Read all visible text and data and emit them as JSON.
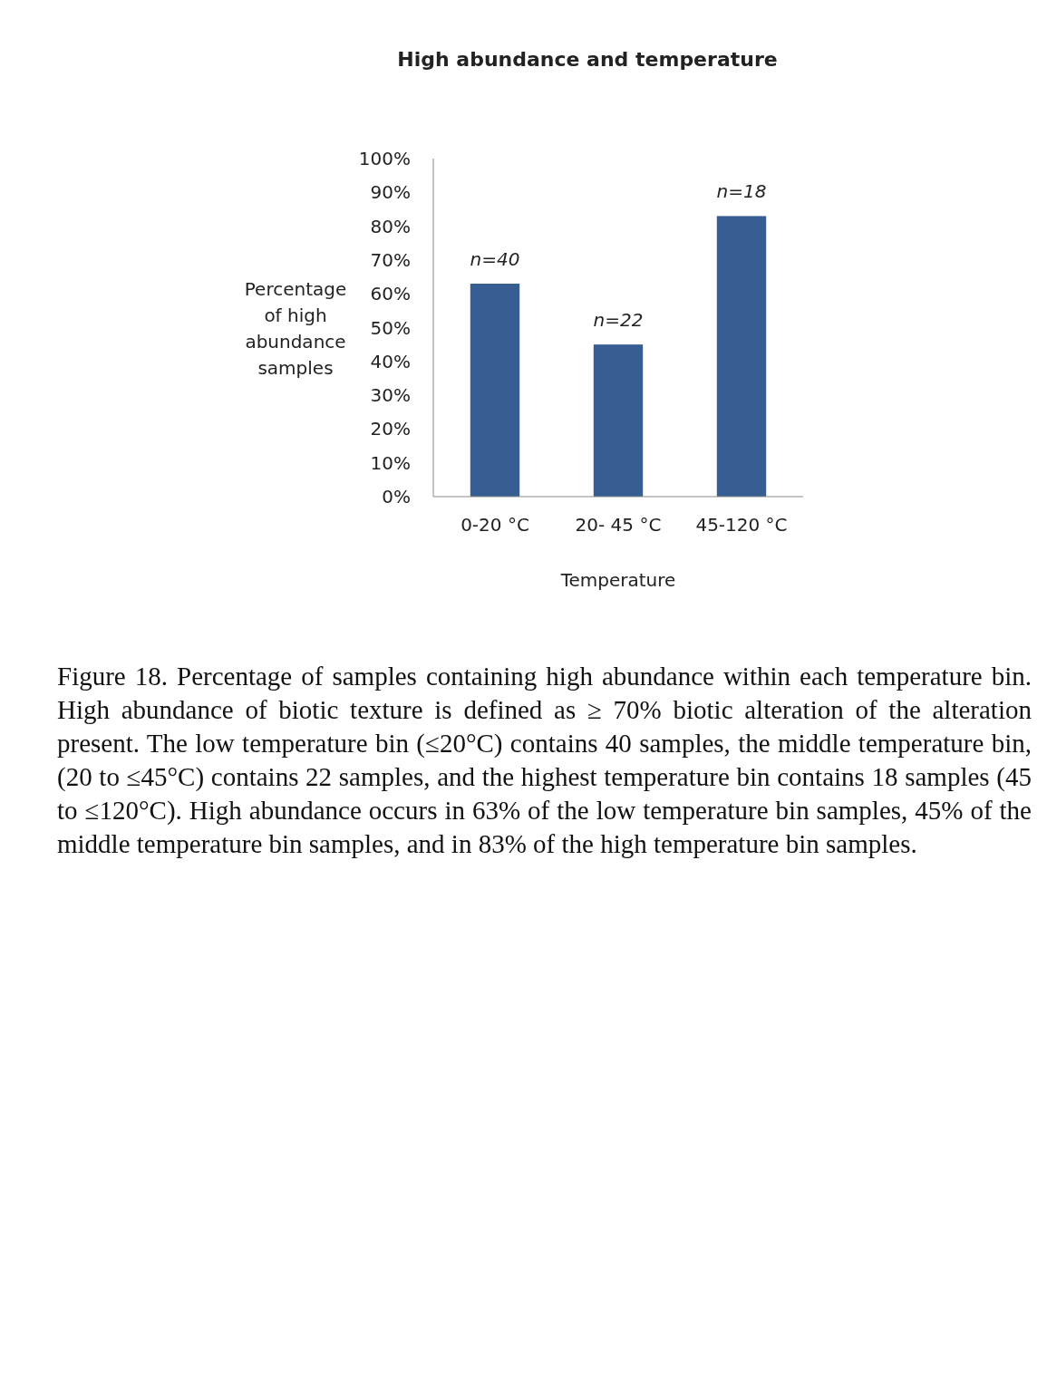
{
  "chart_data": {
    "type": "bar",
    "title": "High abundance and temperature",
    "xlabel": "Temperature",
    "ylabel": "Percentage of high abundance samples",
    "categories": [
      "0-20 °C",
      "20- 45 °C",
      "45-120 °C"
    ],
    "values": [
      63,
      45,
      83
    ],
    "color": "#375e92",
    "ylim": [
      0,
      100
    ],
    "yticks": [
      {
        "value": 0,
        "label": "0%"
      },
      {
        "value": 10,
        "label": "10%"
      },
      {
        "value": 20,
        "label": "20%"
      },
      {
        "value": 30,
        "label": "30%"
      },
      {
        "value": 40,
        "label": "40%"
      },
      {
        "value": 50,
        "label": "50%"
      },
      {
        "value": 60,
        "label": "60%"
      },
      {
        "value": 70,
        "label": "70%"
      },
      {
        "value": 80,
        "label": "80%"
      },
      {
        "value": 90,
        "label": "90%"
      },
      {
        "value": 100,
        "label": "100%"
      }
    ],
    "grid": false,
    "annotations": [
      {
        "text": "n=40",
        "x": "0-20 °C",
        "y": 63
      },
      {
        "text": "n=22",
        "x": "20- 45 °C",
        "y": 45
      },
      {
        "text": "n=18",
        "x": "45-120 °C",
        "y": 83
      },
      "Figure 18. Percentage of samples containing high abundance within each temperature bin. High abundance of biotic texture is defined as ≥ 70% biotic alteration of the alteration present. The low temperature bin (≤20°C) contains 40 samples, the middle temperature bin, (20 to ≤45°C) contains 22 samples, and the highest temperature bin contains 18 samples (45 to ≤120°C).  High abundance occurs in 63% of the low temperature bin samples, 45% of the middle temperature bin samples, and in 83% of the high temperature bin samples."
    ]
  }
}
